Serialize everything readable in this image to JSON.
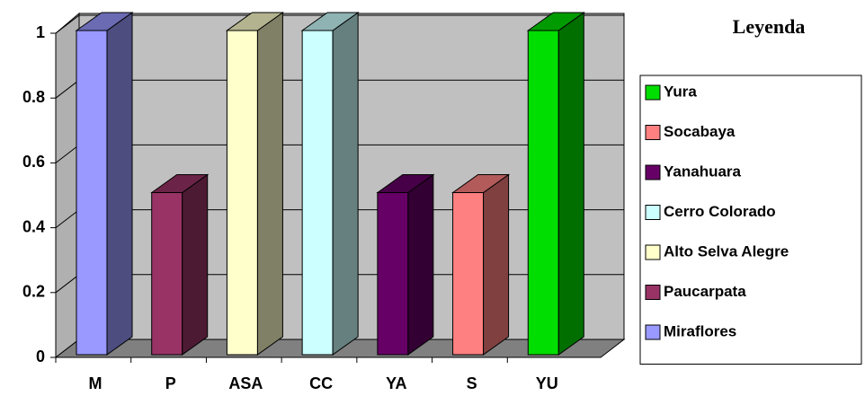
{
  "chart_data": {
    "type": "bar3d",
    "categories": [
      "M",
      "P",
      "ASA",
      "CC",
      "YA",
      "S",
      "YU"
    ],
    "values": [
      1,
      0.5,
      1,
      1,
      0.5,
      0.5,
      1
    ],
    "colors": [
      "#9999ff",
      "#993366",
      "#ffffcc",
      "#ccffff",
      "#660066",
      "#ff8080",
      "#00dd00"
    ],
    "ylim": [
      0,
      1
    ],
    "yticks": [
      0,
      0.2,
      0.4,
      0.6,
      0.8,
      1
    ],
    "grid": true,
    "legend": {
      "title": "Leyenda",
      "position": "right",
      "labels": [
        "Yura",
        "Socabaya",
        "Yanahuara",
        "Cerro Colorado",
        "Alto Selva Alegre",
        "Paucarpata",
        "Miraflores"
      ]
    }
  }
}
